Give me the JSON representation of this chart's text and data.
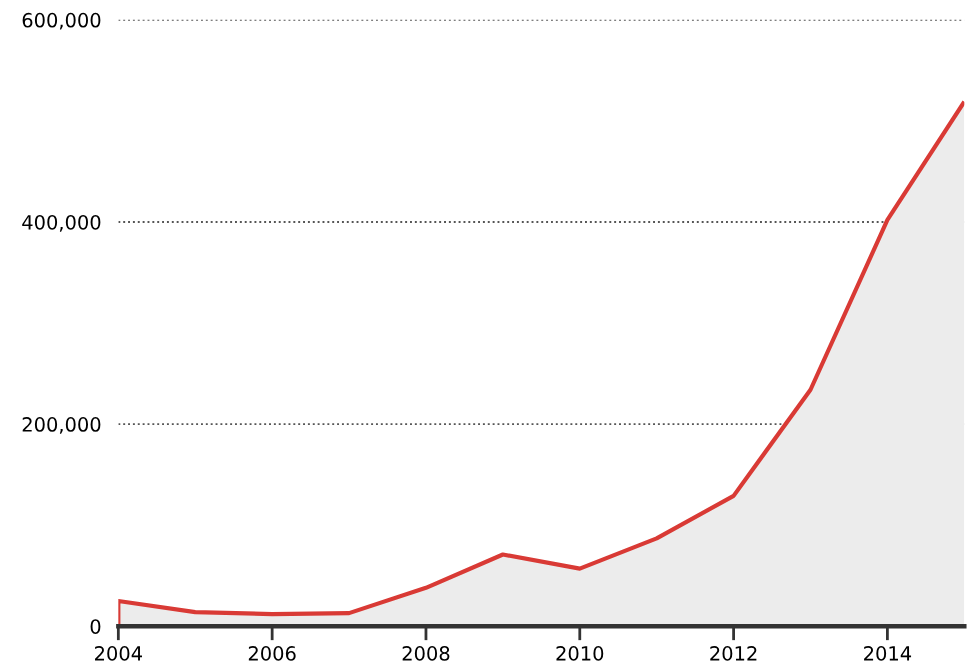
{
  "chart_data": {
    "type": "area",
    "x": [
      2004,
      2005,
      2006,
      2007,
      2008,
      2009,
      2010,
      2011,
      2012,
      2013,
      2014,
      2015
    ],
    "series": [
      {
        "color": "#d93a35",
        "values": [
          25000,
          14000,
          12000,
          13000,
          38000,
          71000,
          57000,
          87000,
          129000,
          234000,
          402000,
          519000
        ]
      }
    ],
    "xlim": [
      2004,
      2015
    ],
    "xticks": [
      2004,
      2006,
      2008,
      2010,
      2012,
      2014
    ],
    "ylim": [
      0,
      600000
    ],
    "yticks": [
      {
        "value": 0,
        "label": "0"
      },
      {
        "value": 200000,
        "label": "200,000"
      },
      {
        "value": 400000,
        "label": "400,000"
      },
      {
        "value": 600000,
        "label": "600,000"
      }
    ],
    "grid": "y",
    "legend": false
  }
}
